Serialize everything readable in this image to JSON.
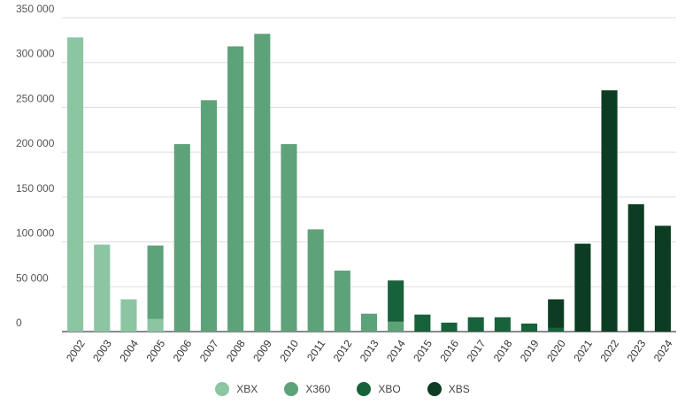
{
  "chart_data": {
    "type": "bar",
    "stacked": true,
    "categories": [
      "2002",
      "2003",
      "2004",
      "2005",
      "2006",
      "2007",
      "2008",
      "2009",
      "2010",
      "2011",
      "2012",
      "2013",
      "2014",
      "2015",
      "2016",
      "2017",
      "2018",
      "2019",
      "2020",
      "2021",
      "2022",
      "2023",
      "2024"
    ],
    "series": [
      {
        "name": "XBX",
        "color": "#8cc5a2",
        "values": [
          328000,
          97000,
          36000,
          14000,
          0,
          0,
          0,
          0,
          0,
          0,
          0,
          0,
          0,
          0,
          0,
          0,
          0,
          0,
          0,
          0,
          0,
          0,
          0
        ]
      },
      {
        "name": "X360",
        "color": "#5ea27a",
        "values": [
          0,
          0,
          0,
          82000,
          209000,
          258000,
          318000,
          332000,
          209000,
          114000,
          68000,
          20000,
          11000,
          0,
          0,
          0,
          0,
          0,
          0,
          0,
          0,
          0,
          0
        ]
      },
      {
        "name": "XBO",
        "color": "#17623a",
        "values": [
          0,
          0,
          0,
          0,
          0,
          0,
          0,
          0,
          0,
          0,
          0,
          0,
          46000,
          19000,
          10000,
          16000,
          16000,
          9000,
          4000,
          0,
          0,
          0,
          0
        ]
      },
      {
        "name": "XBS",
        "color": "#0c3d22",
        "values": [
          0,
          0,
          0,
          0,
          0,
          0,
          0,
          0,
          0,
          0,
          0,
          0,
          0,
          0,
          0,
          0,
          0,
          0,
          32000,
          98000,
          269000,
          142000,
          118000
        ]
      }
    ],
    "yticks": [
      "0",
      "50 000",
      "100 000",
      "150 000",
      "200 000",
      "250 000",
      "300 000",
      "350 000"
    ],
    "ylim": [
      0,
      350000
    ],
    "grid": true,
    "legend_position": "bottom-center",
    "title": "",
    "xlabel": "",
    "ylabel": ""
  }
}
